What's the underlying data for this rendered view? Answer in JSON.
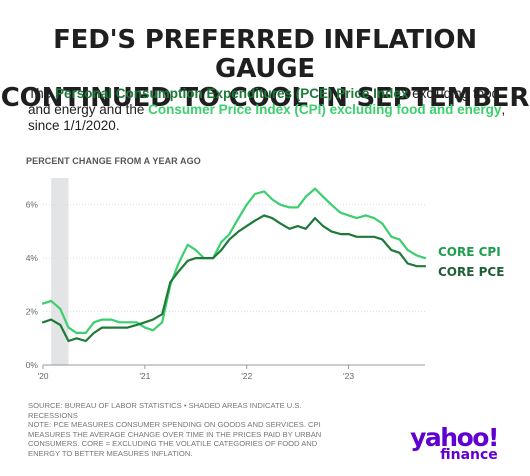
{
  "header": {
    "title_line1": "FED'S PREFERRED INFLATION GAUGE",
    "title_line2": "CONTINUED TO COOL IN SEPTEMBER",
    "subtitle": {
      "part1": "The ",
      "pce_name": "Personal Consumption Expenditures (PCE) Price Index",
      "part2": " excluding food and energy and the ",
      "cpi_name": "Consumer Price Index (CPI) excluding food and energy",
      "part3": ", since 1/1/2020."
    }
  },
  "colors": {
    "pce": "#1f7a3a",
    "cpi": "#3ccf6e",
    "recession": "#e3e4e5",
    "grid": "#dcdcdc"
  },
  "chart_data": {
    "type": "line",
    "ylabel": "PERCENT CHANGE FROM A YEAR AGO",
    "ylim": [
      0,
      7
    ],
    "yticks": [
      0,
      2,
      4,
      6
    ],
    "ytick_labels": [
      "0%",
      "2%",
      "4%",
      "6%"
    ],
    "xlim": [
      2020.0,
      2023.75
    ],
    "xticks": [
      2020,
      2021,
      2022,
      2023
    ],
    "xtick_labels": [
      "'20",
      "'21",
      "'22",
      "'23"
    ],
    "grid": true,
    "shaded_range": [
      2020.08,
      2020.25
    ],
    "x": [
      2020.0,
      2020.08,
      2020.17,
      2020.25,
      2020.33,
      2020.42,
      2020.5,
      2020.58,
      2020.67,
      2020.75,
      2020.83,
      2020.92,
      2021.0,
      2021.08,
      2021.17,
      2021.25,
      2021.33,
      2021.42,
      2021.5,
      2021.58,
      2021.67,
      2021.75,
      2021.83,
      2021.92,
      2022.0,
      2022.08,
      2022.17,
      2022.25,
      2022.33,
      2022.42,
      2022.5,
      2022.58,
      2022.67,
      2022.75,
      2022.83,
      2022.92,
      2023.0,
      2023.08,
      2023.17,
      2023.25,
      2023.33,
      2023.42,
      2023.5,
      2023.58,
      2023.67,
      2023.75
    ],
    "series": [
      {
        "name": "CORE CPI",
        "values": [
          2.3,
          2.4,
          2.1,
          1.4,
          1.2,
          1.2,
          1.6,
          1.7,
          1.7,
          1.6,
          1.6,
          1.6,
          1.4,
          1.3,
          1.6,
          3.0,
          3.8,
          4.5,
          4.3,
          4.0,
          4.0,
          4.6,
          4.9,
          5.5,
          6.0,
          6.4,
          6.5,
          6.2,
          6.0,
          5.9,
          5.9,
          6.3,
          6.6,
          6.3,
          6.0,
          5.7,
          5.6,
          5.5,
          5.6,
          5.5,
          5.3,
          4.8,
          4.7,
          4.3,
          4.1,
          4.0
        ]
      },
      {
        "name": "CORE PCE",
        "values": [
          1.6,
          1.7,
          1.5,
          0.9,
          1.0,
          0.9,
          1.2,
          1.4,
          1.4,
          1.4,
          1.4,
          1.5,
          1.6,
          1.7,
          1.9,
          3.1,
          3.5,
          3.9,
          4.0,
          4.0,
          4.0,
          4.3,
          4.7,
          5.0,
          5.2,
          5.4,
          5.6,
          5.5,
          5.3,
          5.1,
          5.2,
          5.1,
          5.5,
          5.2,
          5.0,
          4.9,
          4.9,
          4.8,
          4.8,
          4.8,
          4.7,
          4.3,
          4.2,
          3.8,
          3.7,
          3.7
        ]
      }
    ]
  },
  "footer": {
    "source": "SOURCE: BUREAU OF LABOR STATISTICS • SHADED AREAS INDICATE U.S. RECESSIONS",
    "note": "NOTE: PCE MEASURES CONSUMER SPENDING ON GOODS AND SERVICES. CPI MEASURES THE AVERAGE CHANGE OVER TIME IN THE PRICES PAID BY URBAN CONSUMERS. CORE = EXCLUDING THE VOLATILE CATEGORIES OF FOOD AND ENERGY TO BETTER MEASURES INFLATION."
  },
  "logo": {
    "main": "yahoo!",
    "sub": "finance"
  }
}
